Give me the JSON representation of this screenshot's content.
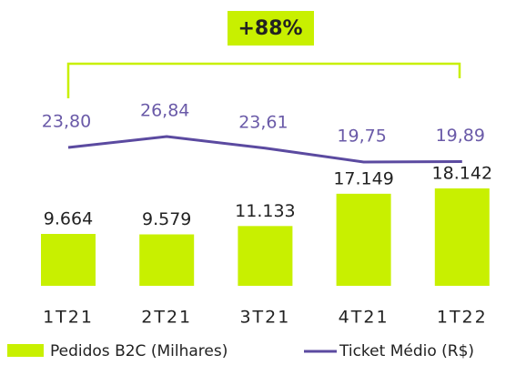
{
  "chart_data": {
    "type": "bar_line",
    "annotation": "+88%",
    "categories": [
      "1T21",
      "2T21",
      "3T21",
      "4T21",
      "1T22"
    ],
    "series": [
      {
        "name": "Pedidos B2C (Milhares)",
        "type": "bar",
        "color": "#c8f000",
        "values": [
          9664,
          9579,
          11133,
          17149,
          18142
        ],
        "value_labels": [
          "9.664",
          "9.579",
          "11.133",
          "17.149",
          "18.142"
        ]
      },
      {
        "name": "Ticket Médio (R$)",
        "type": "line",
        "color": "#5b4aa0",
        "values": [
          23.8,
          26.84,
          23.61,
          19.75,
          19.89
        ],
        "value_labels": [
          "23,80",
          "26,84",
          "23,61",
          "19,75",
          "19,89"
        ]
      }
    ]
  }
}
